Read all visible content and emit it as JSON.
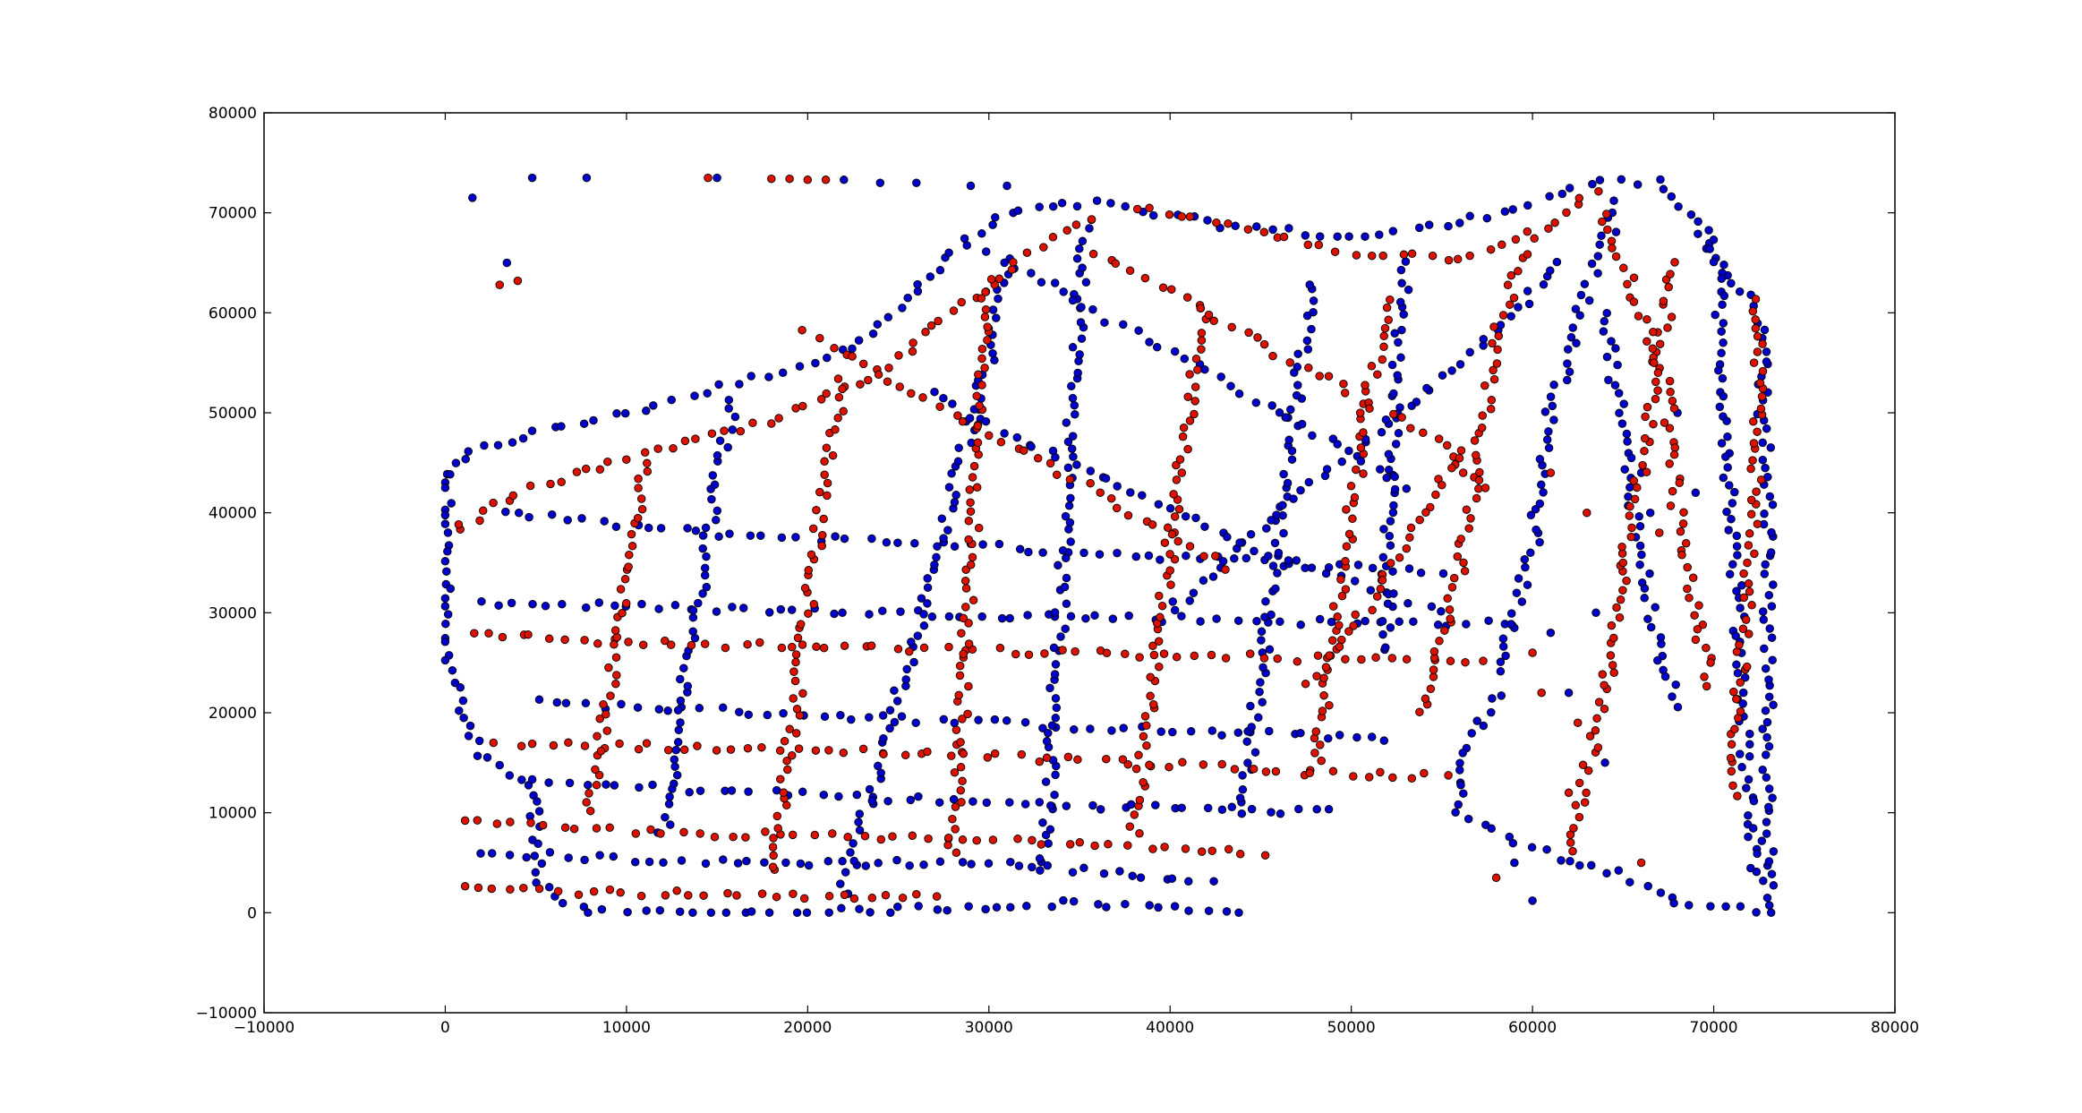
{
  "chart_data": {
    "type": "scatter",
    "title": "",
    "xlabel": "",
    "ylabel": "",
    "xlim": [
      -10000,
      80000
    ],
    "ylim": [
      -10000,
      80000
    ],
    "xticks": [
      -10000,
      0,
      10000,
      20000,
      30000,
      40000,
      50000,
      60000,
      70000,
      80000
    ],
    "yticks": [
      -10000,
      0,
      10000,
      20000,
      30000,
      40000,
      50000,
      60000,
      70000,
      80000
    ],
    "xtick_labels": [
      "−10000",
      "0",
      "10000",
      "20000",
      "30000",
      "40000",
      "50000",
      "60000",
      "70000",
      "80000"
    ],
    "ytick_labels": [
      "−10000",
      "0",
      "10000",
      "20000",
      "30000",
      "40000",
      "50000",
      "60000",
      "70000",
      "80000"
    ],
    "grid": false,
    "legend": "none",
    "colors": {
      "series_a": "#0000cc",
      "series_b": "#dd1100",
      "edge": "#000000"
    },
    "series": [
      {
        "color": "#0000cc",
        "paths": [
          [
            [
              0,
              44000
            ],
            [
              2000,
              46500
            ],
            [
              5000,
              48000
            ],
            [
              10000,
              50000
            ],
            [
              16000,
              53000
            ],
            [
              22000,
              56000
            ],
            [
              26000,
              62000
            ],
            [
              28000,
              66000
            ],
            [
              31000,
              70000
            ],
            [
              36000,
              71000
            ]
          ],
          [
            [
              36000,
              71000
            ],
            [
              42000,
              69000
            ],
            [
              50000,
              67500
            ],
            [
              56000,
              69000
            ],
            [
              60000,
              71000
            ],
            [
              63000,
              73000
            ],
            [
              67000,
              73000
            ],
            [
              69000,
              69000
            ],
            [
              71000,
              63000
            ],
            [
              72500,
              60000
            ]
          ],
          [
            [
              0,
              44000
            ],
            [
              0,
              25000
            ],
            [
              2000,
              16000
            ],
            [
              5000,
              12000
            ],
            [
              5000,
              3000
            ],
            [
              8000,
              0
            ],
            [
              20000,
              0
            ],
            [
              35000,
              1000
            ],
            [
              45000,
              0
            ]
          ],
          [
            [
              58000,
              22000
            ],
            [
              56000,
              15000
            ],
            [
              56000,
              10000
            ],
            [
              59000,
              7000
            ],
            [
              62000,
              5000
            ],
            [
              65000,
              4000
            ],
            [
              68000,
              1000
            ],
            [
              73000,
              0
            ],
            [
              73000,
              20000
            ],
            [
              73000,
              40000
            ],
            [
              72500,
              60000
            ]
          ],
          [
            [
              3000,
              40000
            ],
            [
              14000,
              38000
            ],
            [
              26000,
              37000
            ],
            [
              36000,
              36000
            ],
            [
              46000,
              35000
            ],
            [
              56000,
              34000
            ]
          ],
          [
            [
              2000,
              31000
            ],
            [
              13000,
              30500
            ],
            [
              25000,
              30000
            ],
            [
              38000,
              29500
            ],
            [
              50000,
              29000
            ],
            [
              60000,
              29000
            ]
          ],
          [
            [
              5000,
              21000
            ],
            [
              18000,
              20000
            ],
            [
              30000,
              19000
            ],
            [
              42000,
              18000
            ],
            [
              53000,
              17500
            ]
          ],
          [
            [
              5000,
              13000
            ],
            [
              18000,
              12000
            ],
            [
              30000,
              11000
            ],
            [
              40000,
              10500
            ],
            [
              50000,
              10000
            ]
          ],
          [
            [
              2000,
              6000
            ],
            [
              15000,
              5000
            ],
            [
              30000,
              5000
            ],
            [
              43000,
              3000
            ]
          ],
          [
            [
              22000,
              2000
            ],
            [
              24000,
              15000
            ],
            [
              26000,
              28000
            ],
            [
              28000,
              42000
            ],
            [
              30000,
              55000
            ],
            [
              31000,
              66000
            ]
          ],
          [
            [
              33000,
              4000
            ],
            [
              33500,
              18000
            ],
            [
              34000,
              32000
            ],
            [
              34500,
              48000
            ],
            [
              35000,
              62000
            ],
            [
              35500,
              70000
            ]
          ],
          [
            [
              12000,
              8000
            ],
            [
              13000,
              20000
            ],
            [
              14000,
              32000
            ],
            [
              15000,
              44000
            ],
            [
              16000,
              52000
            ]
          ],
          [
            [
              44000,
              10000
            ],
            [
              45000,
              24000
            ],
            [
              46000,
              38000
            ],
            [
              47000,
              52000
            ],
            [
              48000,
              64000
            ]
          ],
          [
            [
              52000,
              26000
            ],
            [
              52000,
              40000
            ],
            [
              52500,
              54000
            ],
            [
              53000,
              66000
            ]
          ],
          [
            [
              40000,
              30000
            ],
            [
              46000,
              40000
            ],
            [
              50000,
              46000
            ],
            [
              54000,
              52000
            ],
            [
              58000,
              58000
            ],
            [
              62000,
              66000
            ]
          ],
          [
            [
              58000,
              24000
            ],
            [
              60000,
              36000
            ],
            [
              61000,
              50000
            ],
            [
              63000,
              62000
            ],
            [
              65000,
              72000
            ]
          ],
          [
            [
              64000,
              60000
            ],
            [
              65000,
              48000
            ],
            [
              66000,
              36000
            ],
            [
              67000,
              26000
            ],
            [
              68000,
              20000
            ]
          ],
          [
            [
              70000,
              68000
            ],
            [
              70500,
              55000
            ],
            [
              71000,
              40000
            ],
            [
              71500,
              25000
            ],
            [
              72000,
              10000
            ],
            [
              72500,
              2000
            ]
          ],
          [
            [
              27000,
              52000
            ],
            [
              32000,
              47000
            ],
            [
              38000,
              42000
            ],
            [
              44000,
              37000
            ],
            [
              50000,
              33000
            ],
            [
              56000,
              30000
            ]
          ],
          [
            [
              30000,
              66000
            ],
            [
              36000,
              60000
            ],
            [
              42000,
              54000
            ],
            [
              48000,
              48000
            ],
            [
              54000,
              42000
            ]
          ]
        ],
        "scatter": [
          [
            1500,
            71500
          ],
          [
            4800,
            73500
          ],
          [
            7800,
            73500
          ],
          [
            3400,
            65000
          ],
          [
            15000,
            73500
          ],
          [
            22000,
            73300
          ],
          [
            24000,
            73000
          ],
          [
            26000,
            73000
          ],
          [
            29000,
            72700
          ],
          [
            31000,
            72700
          ],
          [
            60000,
            1200
          ],
          [
            59000,
            5000
          ],
          [
            61000,
            28000
          ],
          [
            62000,
            22000
          ],
          [
            63500,
            30000
          ],
          [
            64000,
            15000
          ],
          [
            66000,
            44000
          ],
          [
            66500,
            40000
          ],
          [
            69000,
            42000
          ],
          [
            68000,
            50000
          ]
        ]
      },
      {
        "color": "#dd1100",
        "paths": [
          [
            [
              500,
              38000
            ],
            [
              4000,
              42000
            ],
            [
              10000,
              45500
            ],
            [
              18000,
              49000
            ],
            [
              24000,
              54000
            ],
            [
              28000,
              60000
            ],
            [
              32000,
              66000
            ],
            [
              36000,
              70000
            ]
          ],
          [
            [
              38000,
              70500
            ],
            [
              44000,
              68500
            ],
            [
              50000,
              66000
            ],
            [
              56000,
              65500
            ],
            [
              60000,
              68000
            ],
            [
              64000,
              72500
            ]
          ],
          [
            [
              1500,
              28000
            ],
            [
              10000,
              27000
            ],
            [
              22000,
              26500
            ],
            [
              34000,
              26000
            ],
            [
              46000,
              25500
            ],
            [
              58000,
              25000
            ]
          ],
          [
            [
              3000,
              17000
            ],
            [
              14000,
              16500
            ],
            [
              26000,
              16000
            ],
            [
              38000,
              15000
            ],
            [
              48000,
              14000
            ],
            [
              56000,
              13500
            ]
          ],
          [
            [
              1000,
              9000
            ],
            [
              12000,
              8000
            ],
            [
              24000,
              7500
            ],
            [
              36000,
              7000
            ],
            [
              46000,
              6000
            ]
          ],
          [
            [
              1000,
              2500
            ],
            [
              10000,
              2000
            ],
            [
              20000,
              1500
            ],
            [
              28000,
              1500
            ]
          ],
          [
            [
              8000,
              10000
            ],
            [
              9000,
              22000
            ],
            [
              10000,
              34000
            ],
            [
              11000,
              46000
            ]
          ],
          [
            [
              18000,
              4000
            ],
            [
              19000,
              16000
            ],
            [
              20000,
              30000
            ],
            [
              21000,
              44000
            ],
            [
              22000,
              54000
            ]
          ],
          [
            [
              28000,
              6000
            ],
            [
              28500,
              20000
            ],
            [
              29000,
              34000
            ],
            [
              29500,
              50000
            ],
            [
              30000,
              64000
            ]
          ],
          [
            [
              38000,
              8000
            ],
            [
              39000,
              22000
            ],
            [
              40000,
              36000
            ],
            [
              41000,
              50000
            ],
            [
              42000,
              62000
            ]
          ],
          [
            [
              48000,
              14000
            ],
            [
              49000,
              28000
            ],
            [
              50000,
              40000
            ],
            [
              51000,
              52000
            ],
            [
              52000,
              62000
            ]
          ],
          [
            [
              54000,
              20000
            ],
            [
              56000,
              34000
            ],
            [
              57000,
              46000
            ],
            [
              58000,
              58000
            ],
            [
              60000,
              68000
            ]
          ],
          [
            [
              62000,
              6000
            ],
            [
              63000,
              14000
            ],
            [
              64000,
              24000
            ],
            [
              65000,
              34000
            ],
            [
              66000,
              44000
            ],
            [
              67000,
              56000
            ],
            [
              68000,
              66000
            ]
          ],
          [
            [
              71000,
              12000
            ],
            [
              71500,
              24000
            ],
            [
              72000,
              36000
            ],
            [
              72500,
              48000
            ],
            [
              72500,
              62000
            ]
          ],
          [
            [
              20000,
              58000
            ],
            [
              26000,
              52000
            ],
            [
              32000,
              46000
            ],
            [
              38000,
              40000
            ],
            [
              44000,
              34000
            ]
          ],
          [
            [
              36000,
              66000
            ],
            [
              42000,
              60000
            ],
            [
              48000,
              54000
            ],
            [
              54000,
              48000
            ],
            [
              58000,
              42000
            ]
          ],
          [
            [
              56000,
              46000
            ],
            [
              54000,
              40000
            ],
            [
              52000,
              34000
            ],
            [
              50000,
              28000
            ],
            [
              47000,
              22000
            ]
          ],
          [
            [
              64000,
              70000
            ],
            [
              66000,
              60000
            ],
            [
              67500,
              52000
            ],
            [
              68000,
              40000
            ],
            [
              69000,
              30000
            ],
            [
              70000,
              22000
            ]
          ]
        ],
        "scatter": [
          [
            3000,
            62800
          ],
          [
            4000,
            63200
          ],
          [
            14500,
            73500
          ],
          [
            18000,
            73400
          ],
          [
            20000,
            73300
          ],
          [
            21000,
            73300
          ],
          [
            19000,
            73400
          ],
          [
            60500,
            22000
          ],
          [
            62500,
            19000
          ],
          [
            64500,
            24000
          ],
          [
            65000,
            35000
          ],
          [
            67000,
            38000
          ],
          [
            63000,
            40000
          ],
          [
            61000,
            44000
          ],
          [
            60000,
            26000
          ],
          [
            62000,
            12000
          ],
          [
            66000,
            5000
          ],
          [
            58000,
            3500
          ]
        ]
      }
    ]
  }
}
